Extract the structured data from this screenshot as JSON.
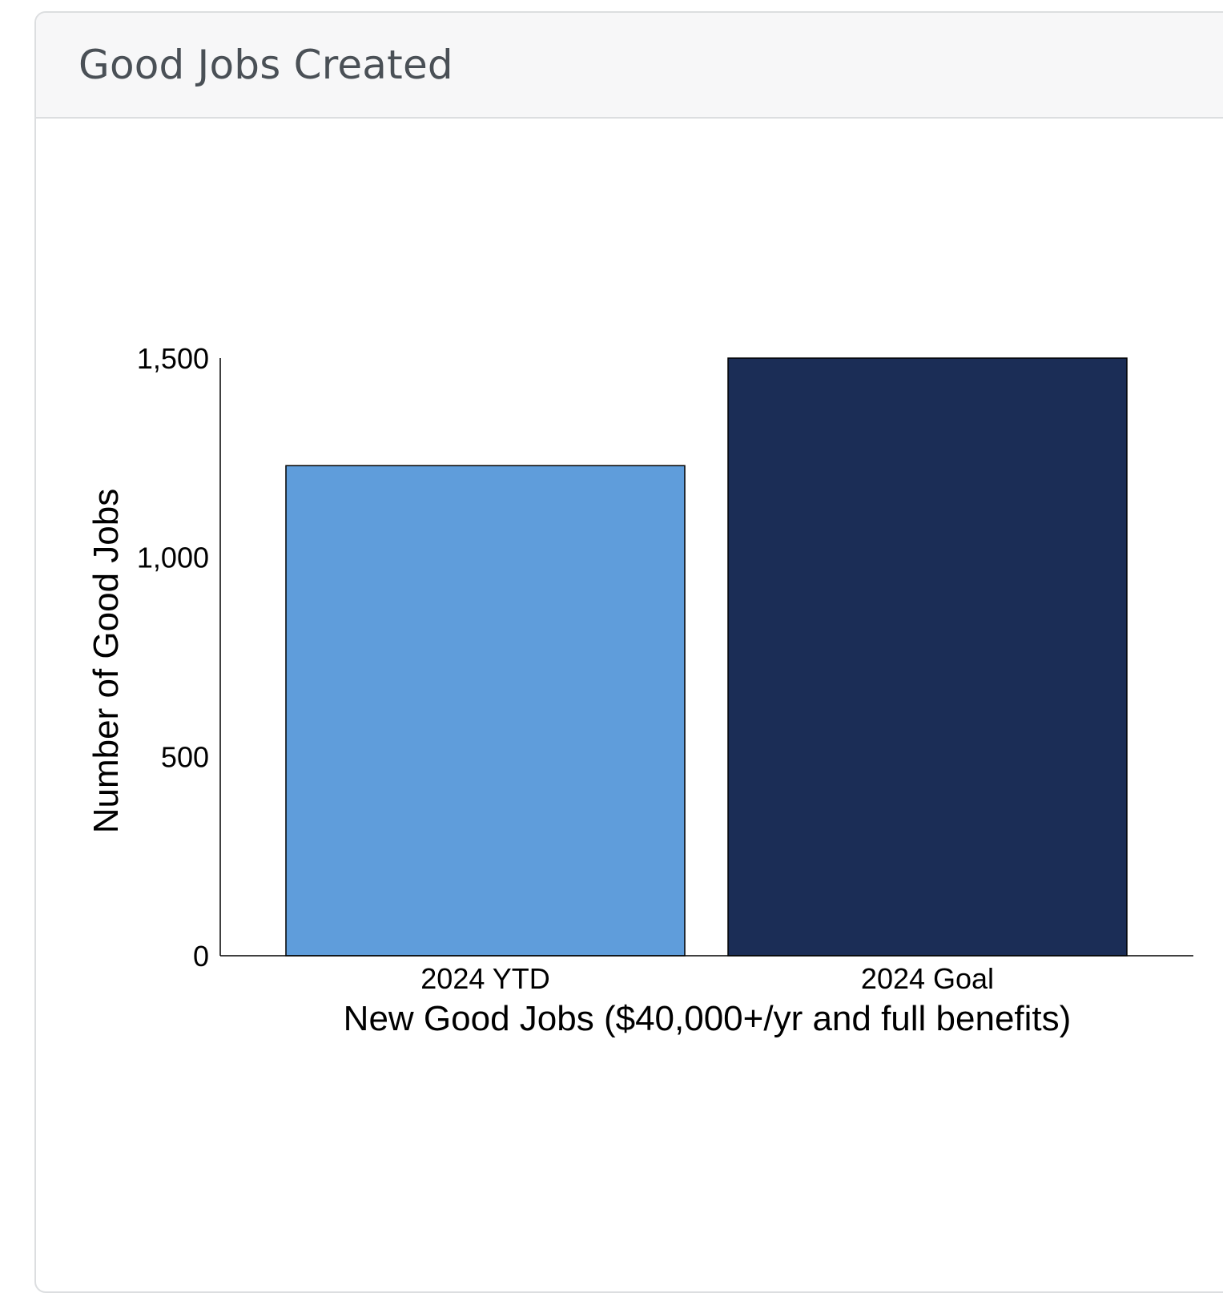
{
  "card": {
    "title": "Good Jobs Created"
  },
  "chart_data": {
    "type": "bar",
    "categories": [
      "2024 YTD",
      "2024 Goal"
    ],
    "values": [
      1230,
      1500
    ],
    "colors": [
      "#5f9ddb",
      "#1b2d56"
    ],
    "bar_edge_color": "#000000",
    "xlabel": "New Good Jobs ($40,000+/yr and full benefits)",
    "ylabel": "Number of Good Jobs",
    "ylim": [
      0,
      1500
    ],
    "yticks": [
      0,
      500,
      1000,
      1500
    ],
    "ytick_labels": [
      "0",
      "500",
      "1,000",
      "1,500"
    ],
    "grid": false,
    "legend": "none"
  }
}
